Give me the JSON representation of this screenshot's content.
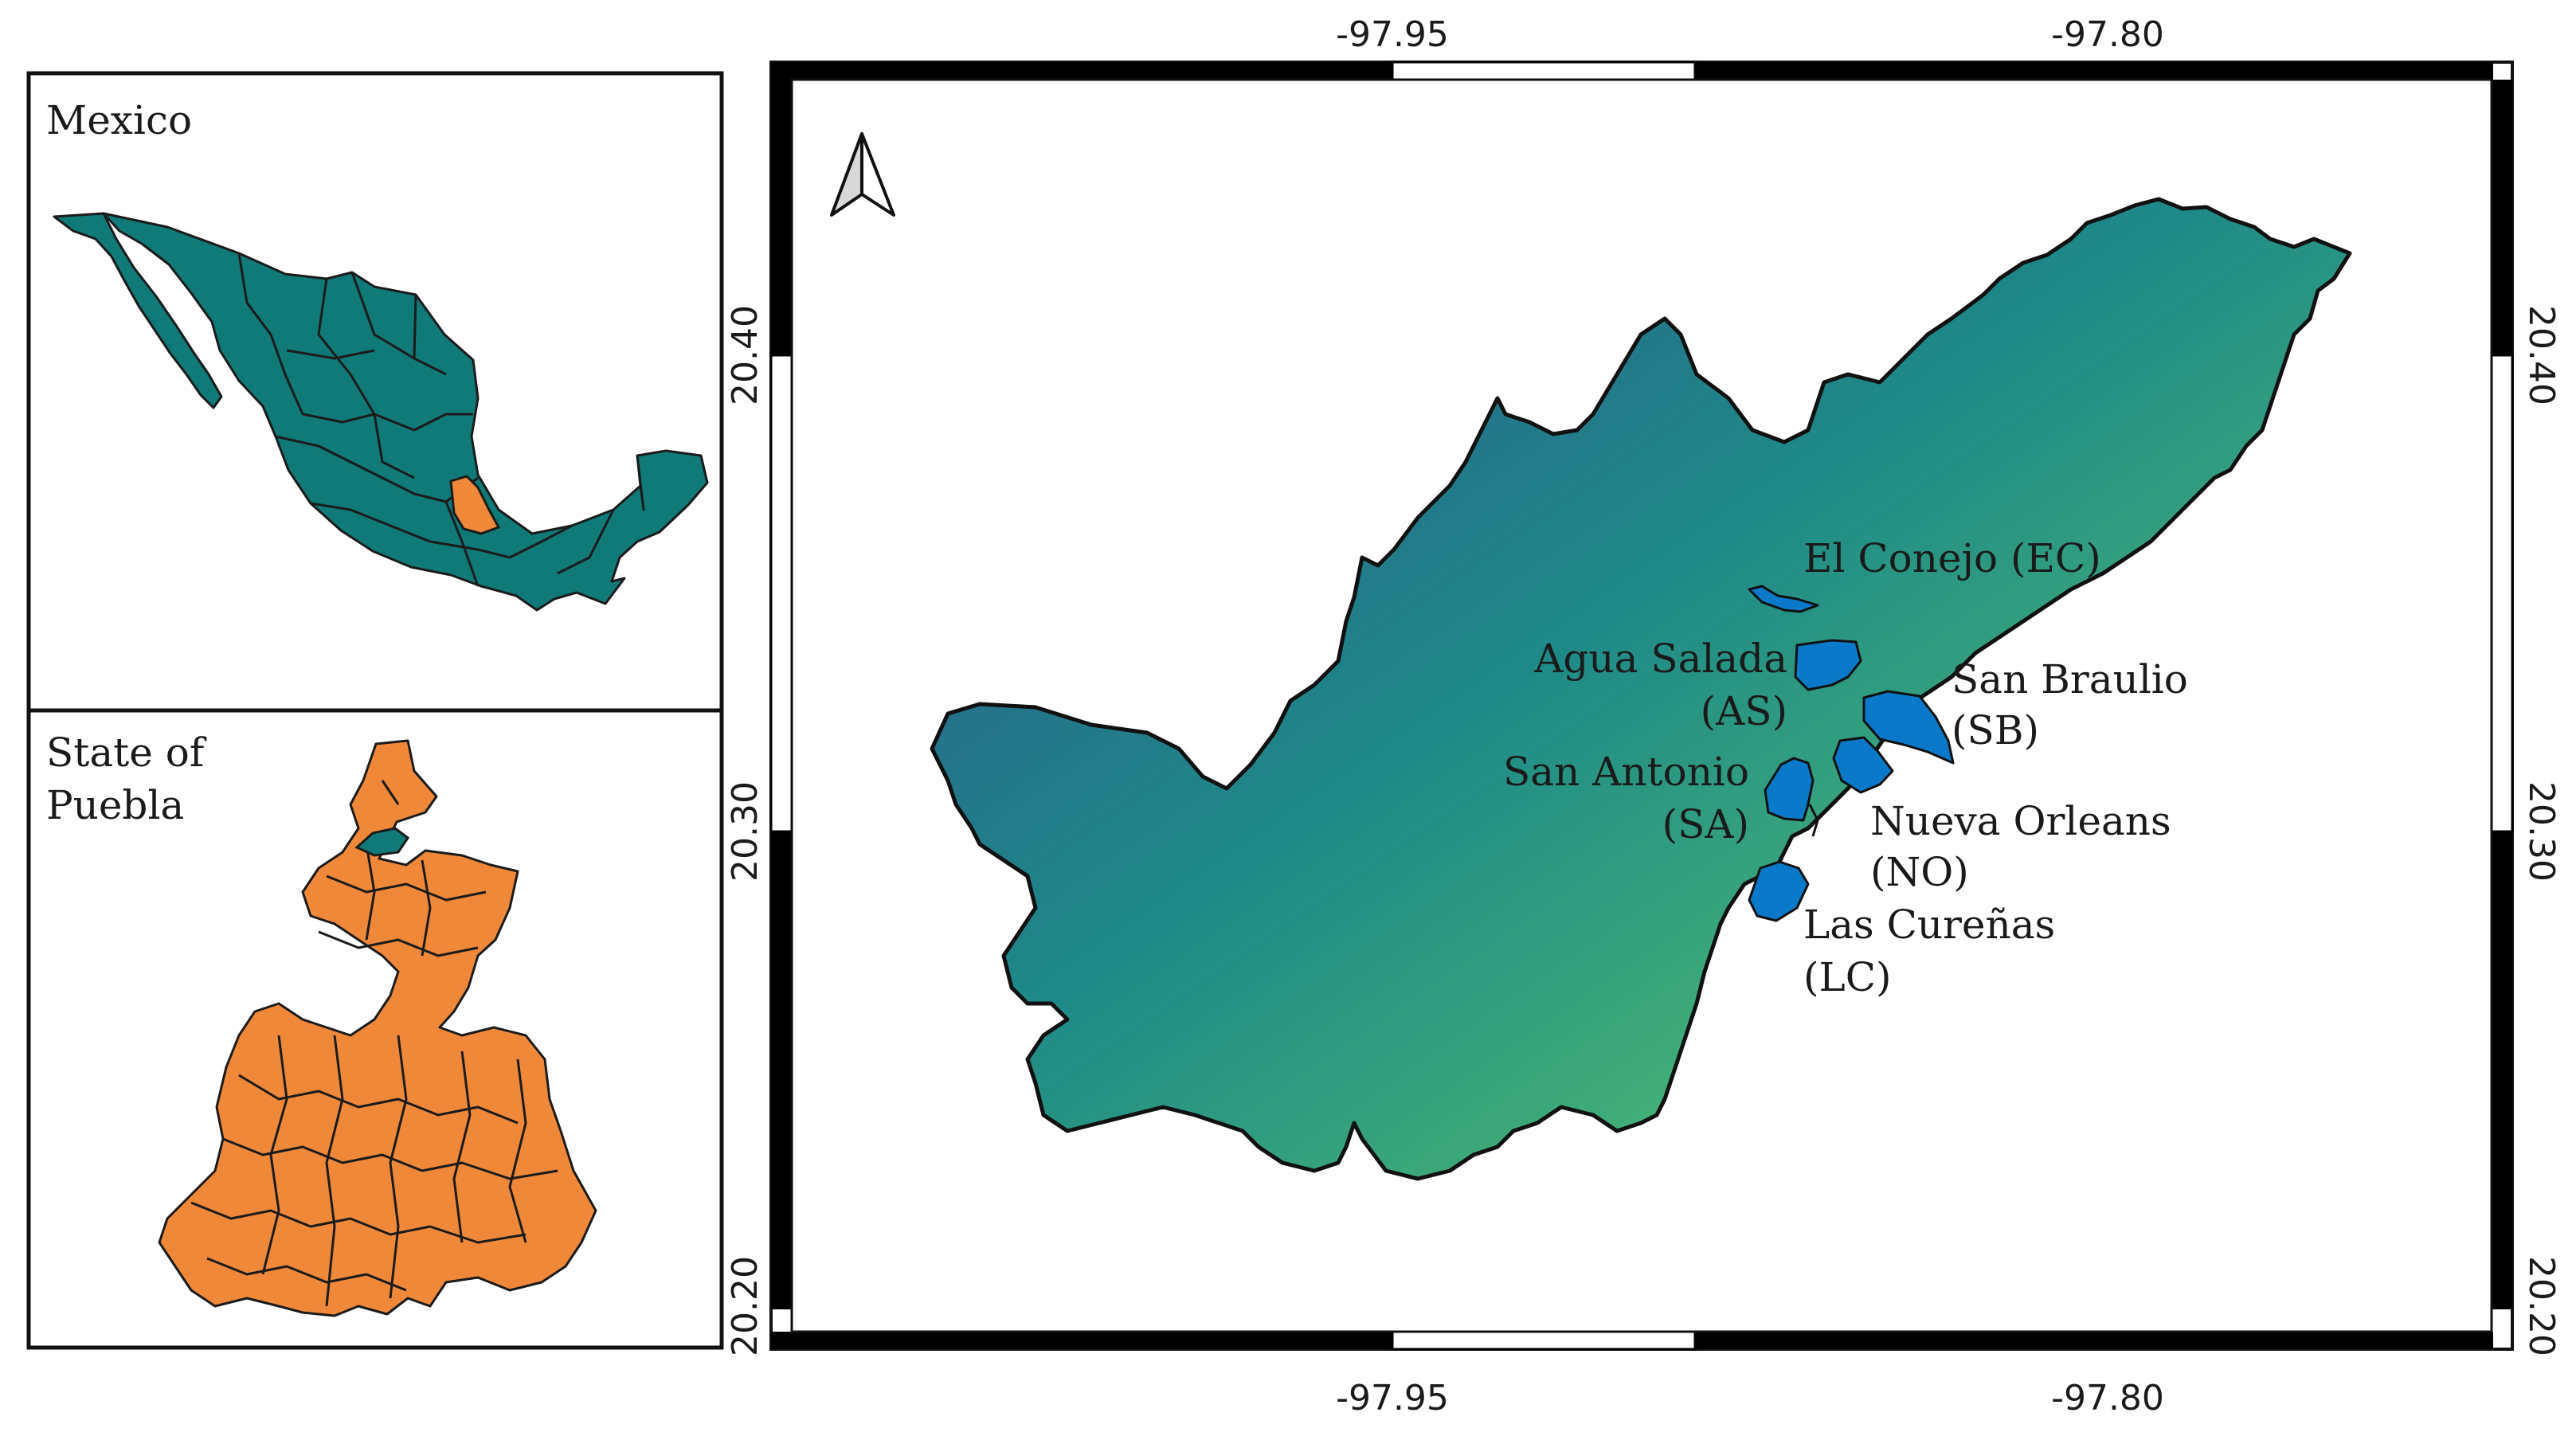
{
  "inset_mexico": {
    "title": "Mexico",
    "country_fill": "#0f7a78",
    "highlight_fill": "#f0883a"
  },
  "inset_puebla": {
    "title_line1": "State of",
    "title_line2": "Puebla",
    "state_fill": "#f0883a",
    "highlight_fill": "#0f7a78"
  },
  "main_map": {
    "north_arrow_icon": "north-arrow-icon",
    "gradient_colors": [
      "#2a5f8e",
      "#1f9a86",
      "#5fd068"
    ],
    "lagoon_fill": "#0a79c9",
    "x_ticks": [
      "-97.95",
      "-97.80"
    ],
    "y_ticks": [
      "20.40",
      "20.30",
      "20.20"
    ],
    "sites": [
      {
        "name": "El Conejo (EC)",
        "lines": [
          "El Conejo (EC)"
        ]
      },
      {
        "name": "Agua Salada (AS)",
        "lines": [
          "Agua Salada",
          "(AS)"
        ]
      },
      {
        "name": "San Braulio (SB)",
        "lines": [
          "San Braulio",
          "(SB)"
        ]
      },
      {
        "name": "San Antonio (SA)",
        "lines": [
          "San Antonio",
          "(SA)"
        ]
      },
      {
        "name": "Nueva Orleans (NO)",
        "lines": [
          "Nueva Orleans",
          "(NO)"
        ]
      },
      {
        "name": "Las Cureñas (LC)",
        "lines": [
          "Las Cureñas",
          "(LC)"
        ]
      }
    ]
  }
}
